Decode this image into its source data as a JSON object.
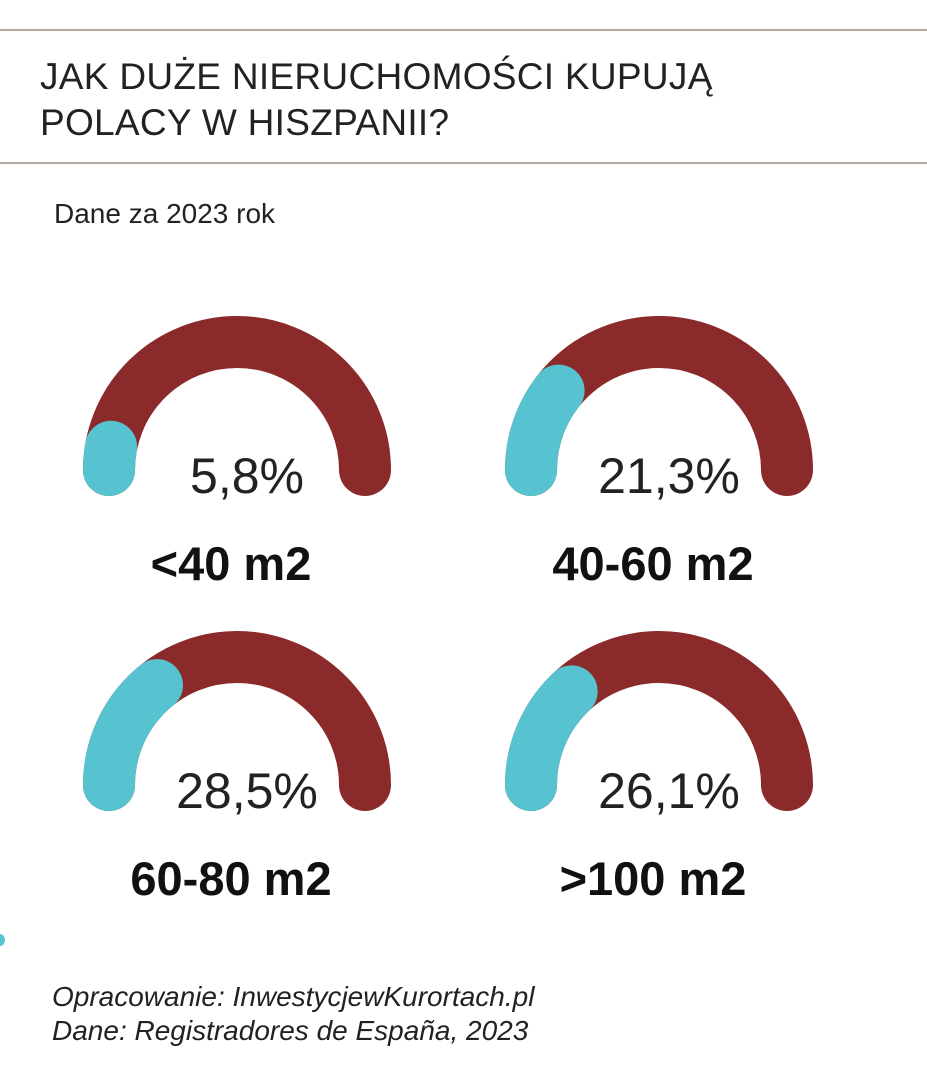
{
  "title_lines": [
    "JAK DUŻE NIERUCHOMOŚCI KUPUJĄ",
    "POLACY W HISZPANII?"
  ],
  "subtitle": "Dane za 2023 rok",
  "colors": {
    "track": "#8a2a2a",
    "fill": "#57c2d0",
    "rule": "#b4aa9f"
  },
  "chart_data": {
    "type": "gauge",
    "title": "JAK DUŻE NIERUCHOMOŚCI KUPUJĄ POLACY W HISZPANII?",
    "subtitle": "Dane za 2023 rok",
    "unit": "%",
    "categories": [
      "<40 m2",
      "40-60 m2",
      "60-80 m2",
      ">100 m2"
    ],
    "values": [
      5.8,
      21.3,
      28.5,
      26.1
    ],
    "value_labels": [
      "5,8%",
      "21,3%",
      "28,5%",
      "26,1%"
    ],
    "range": [
      0,
      100
    ]
  },
  "footer": {
    "line1": "Opracowanie: InwestycjewKurortach.pl",
    "line2": "Dane: Registradores de España, 2023"
  }
}
